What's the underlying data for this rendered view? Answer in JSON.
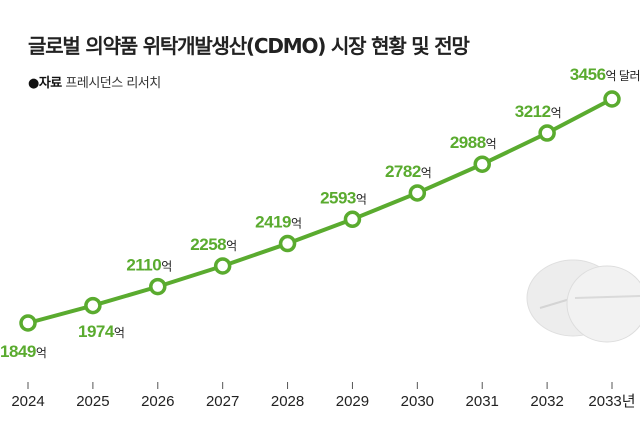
{
  "title": "글로벌 의약품 위탁개발생산(CDMO) 시장 현황 및 전망",
  "source": {
    "label": "●자료",
    "text": "프레시던스 리서치"
  },
  "chart_data": {
    "type": "line",
    "categories": [
      "2024",
      "2025",
      "2026",
      "2027",
      "2028",
      "2029",
      "2030",
      "2031",
      "2032",
      "2033년"
    ],
    "values": [
      1849,
      1974,
      2110,
      2258,
      2419,
      2593,
      2782,
      2988,
      3212,
      3456
    ],
    "data_labels": [
      "1849",
      "1974",
      "2110",
      "2258",
      "2419",
      "2593",
      "2782",
      "2988",
      "3212",
      "3456"
    ],
    "unit": "억",
    "last_unit": "억 달러",
    "color": "#5aab2f",
    "grid": false
  }
}
